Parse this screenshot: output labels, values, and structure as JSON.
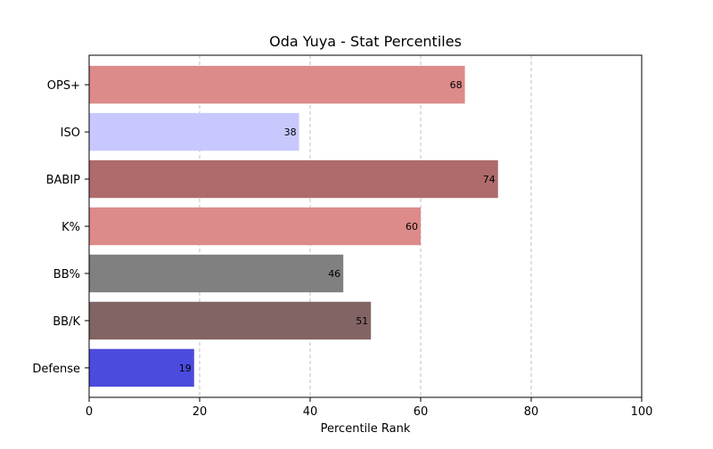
{
  "chart_data": {
    "type": "bar",
    "orientation": "horizontal",
    "title": "Oda Yuya - Stat Percentiles",
    "xlabel": "Percentile Rank",
    "ylabel": "",
    "xlim": [
      0,
      100
    ],
    "xticks": [
      0,
      20,
      40,
      60,
      80,
      100
    ],
    "grid": "x-dashed",
    "categories": [
      "OPS+",
      "ISO",
      "BABIP",
      "K%",
      "BB%",
      "BB/K",
      "Defense"
    ],
    "values": [
      68,
      38,
      74,
      60,
      46,
      51,
      19
    ],
    "colors": [
      "#dd8a8a",
      "#c8c8ff",
      "#af6b6b",
      "#dd8a8a",
      "#808080",
      "#836464",
      "#4b4bdd"
    ],
    "show_value_labels": true
  }
}
